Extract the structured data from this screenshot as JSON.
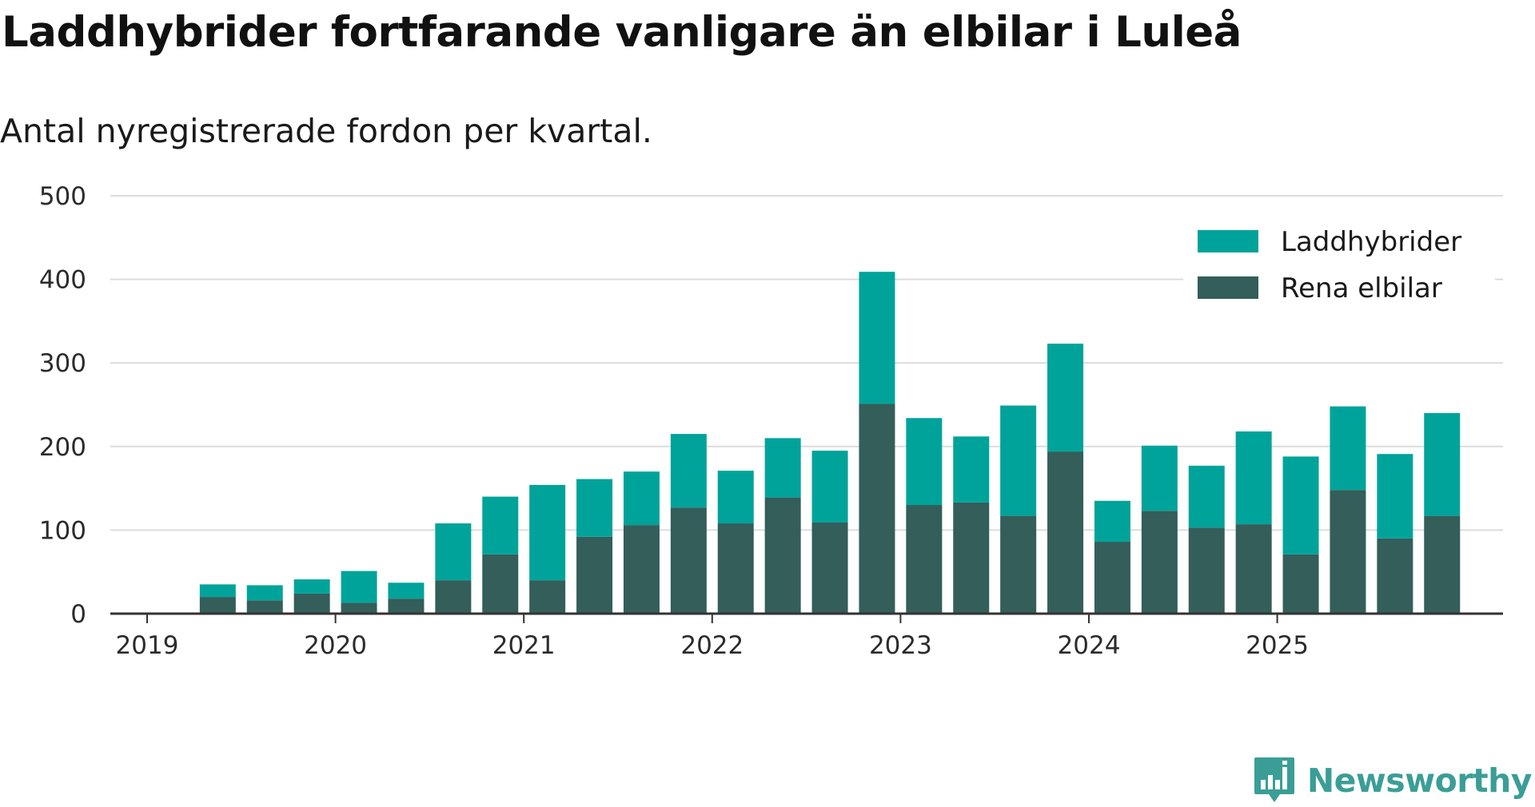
{
  "page": {
    "title": "Laddhybrider fortfarande vanligare än elbilar i Luleå",
    "subtitle": "Antal nyregistrerade fordon per kvartal.",
    "brand": "Newsworthy"
  },
  "colors": {
    "laddhybrider": "#00a39a",
    "elbilar": "#335e5a",
    "grid": "#dcdcdc",
    "axis": "#333333",
    "brand": "#3a9e96"
  },
  "chart_data": {
    "type": "bar",
    "stacked": true,
    "title": "Laddhybrider fortfarande vanligare än elbilar i Luleå",
    "subtitle": "Antal nyregistrerade fordon per kvartal.",
    "xlabel": "",
    "ylabel": "",
    "ylim": [
      0,
      500
    ],
    "yticks": [
      0,
      100,
      200,
      300,
      400,
      500
    ],
    "grid": true,
    "legend_position": "top-right",
    "x_tick_labels": [
      "2019",
      "2020",
      "2021",
      "2022",
      "2023",
      "2024",
      "2025"
    ],
    "categories": [
      "2019 Q2",
      "2019 Q3",
      "2019 Q4",
      "2020 Q1",
      "2020 Q2",
      "2020 Q3",
      "2020 Q4",
      "2021 Q1",
      "2021 Q2",
      "2021 Q3",
      "2021 Q4",
      "2022 Q1",
      "2022 Q2",
      "2022 Q3",
      "2022 Q4",
      "2023 Q1",
      "2023 Q2",
      "2023 Q3",
      "2023 Q4",
      "2024 Q1",
      "2024 Q2",
      "2024 Q3",
      "2024 Q4",
      "2025 Q1",
      "2025 Q2",
      "2025 Q3",
      "2025 Q4"
    ],
    "series": [
      {
        "name": "Rena elbilar",
        "color": "#335e5a",
        "values": [
          20,
          16,
          24,
          13,
          18,
          40,
          71,
          40,
          92,
          106,
          127,
          108,
          139,
          109,
          251,
          130,
          133,
          117,
          194,
          86,
          123,
          103,
          107,
          71,
          148,
          90,
          117
        ]
      },
      {
        "name": "Laddhybrider",
        "color": "#00a39a",
        "values": [
          15,
          18,
          17,
          38,
          19,
          68,
          69,
          114,
          69,
          64,
          88,
          63,
          71,
          86,
          158,
          104,
          79,
          132,
          129,
          49,
          78,
          74,
          111,
          117,
          100,
          101,
          123
        ]
      }
    ],
    "legend": [
      {
        "label": "Laddhybrider",
        "color": "#00a39a"
      },
      {
        "label": "Rena elbilar",
        "color": "#335e5a"
      }
    ]
  }
}
